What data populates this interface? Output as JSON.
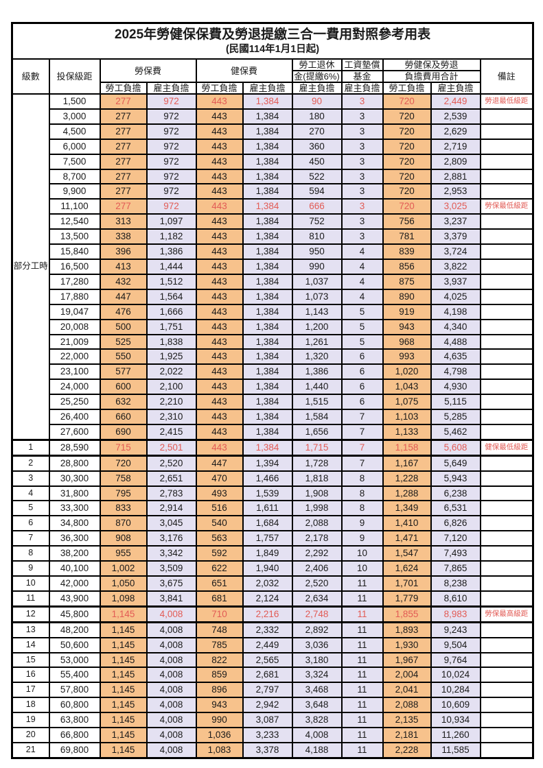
{
  "page": {
    "title": "2025年勞健保保費及勞退提繳三合一費用對照參考用表",
    "subtitle": "(民國114年1月1日起)"
  },
  "colors": {
    "employee_burden_bg": "#f7c28c",
    "employer_burden_bg": "#e4e1f2",
    "highlight_text": "#e25b55",
    "border": "#000000"
  },
  "header": {
    "level": "級數",
    "salary_bracket": "投保級距",
    "labor_insurance": "勞保費",
    "health_insurance": "健保費",
    "pension_line1": "勞工退休",
    "pension_line2": "金(提繳6%)",
    "wage_fund_line1": "工資墊償",
    "wage_fund_line2": "基金",
    "total_line1": "勞健保及勞退",
    "total_line2": "負擔費用合計",
    "note": "備註",
    "employee_burden": "勞工負擔",
    "employer_burden": "雇主負擔"
  },
  "table": {
    "part_time_label": "部分工時",
    "rows": [
      {
        "level": "部分工時",
        "level_rowspan": 23,
        "salary": "1,500",
        "cells": [
          "277",
          "972",
          "443",
          "1,384",
          "90",
          "3",
          "720",
          "2,449"
        ],
        "note": "勞退最低級距",
        "highlight": true
      },
      {
        "salary": "3,000",
        "cells": [
          "277",
          "972",
          "443",
          "1,384",
          "180",
          "3",
          "720",
          "2,539"
        ],
        "note": ""
      },
      {
        "salary": "4,500",
        "cells": [
          "277",
          "972",
          "443",
          "1,384",
          "270",
          "3",
          "720",
          "2,629"
        ],
        "note": ""
      },
      {
        "salary": "6,000",
        "cells": [
          "277",
          "972",
          "443",
          "1,384",
          "360",
          "3",
          "720",
          "2,719"
        ],
        "note": ""
      },
      {
        "salary": "7,500",
        "cells": [
          "277",
          "972",
          "443",
          "1,384",
          "450",
          "3",
          "720",
          "2,809"
        ],
        "note": ""
      },
      {
        "salary": "8,700",
        "cells": [
          "277",
          "972",
          "443",
          "1,384",
          "522",
          "3",
          "720",
          "2,881"
        ],
        "note": ""
      },
      {
        "salary": "9,900",
        "cells": [
          "277",
          "972",
          "443",
          "1,384",
          "594",
          "3",
          "720",
          "2,953"
        ],
        "note": ""
      },
      {
        "salary": "11,100",
        "cells": [
          "277",
          "972",
          "443",
          "1,384",
          "666",
          "3",
          "720",
          "3,025"
        ],
        "note": "勞保最低級距",
        "highlight": true
      },
      {
        "salary": "12,540",
        "cells": [
          "313",
          "1,097",
          "443",
          "1,384",
          "752",
          "3",
          "756",
          "3,237"
        ],
        "note": ""
      },
      {
        "salary": "13,500",
        "cells": [
          "338",
          "1,182",
          "443",
          "1,384",
          "810",
          "3",
          "781",
          "3,379"
        ],
        "note": ""
      },
      {
        "salary": "15,840",
        "cells": [
          "396",
          "1,386",
          "443",
          "1,384",
          "950",
          "4",
          "839",
          "3,724"
        ],
        "note": ""
      },
      {
        "salary": "16,500",
        "cells": [
          "413",
          "1,444",
          "443",
          "1,384",
          "990",
          "4",
          "856",
          "3,822"
        ],
        "note": ""
      },
      {
        "salary": "17,280",
        "cells": [
          "432",
          "1,512",
          "443",
          "1,384",
          "1,037",
          "4",
          "875",
          "3,937"
        ],
        "note": ""
      },
      {
        "salary": "17,880",
        "cells": [
          "447",
          "1,564",
          "443",
          "1,384",
          "1,073",
          "4",
          "890",
          "4,025"
        ],
        "note": ""
      },
      {
        "salary": "19,047",
        "cells": [
          "476",
          "1,666",
          "443",
          "1,384",
          "1,143",
          "5",
          "919",
          "4,198"
        ],
        "note": ""
      },
      {
        "salary": "20,008",
        "cells": [
          "500",
          "1,751",
          "443",
          "1,384",
          "1,200",
          "5",
          "943",
          "4,340"
        ],
        "note": ""
      },
      {
        "salary": "21,009",
        "cells": [
          "525",
          "1,838",
          "443",
          "1,384",
          "1,261",
          "5",
          "968",
          "4,488"
        ],
        "note": ""
      },
      {
        "salary": "22,000",
        "cells": [
          "550",
          "1,925",
          "443",
          "1,384",
          "1,320",
          "6",
          "993",
          "4,635"
        ],
        "note": ""
      },
      {
        "salary": "23,100",
        "cells": [
          "577",
          "2,022",
          "443",
          "1,384",
          "1,386",
          "6",
          "1,020",
          "4,798"
        ],
        "note": ""
      },
      {
        "salary": "24,000",
        "cells": [
          "600",
          "2,100",
          "443",
          "1,384",
          "1,440",
          "6",
          "1,043",
          "4,930"
        ],
        "note": ""
      },
      {
        "salary": "25,250",
        "cells": [
          "632",
          "2,210",
          "443",
          "1,384",
          "1,515",
          "6",
          "1,075",
          "5,115"
        ],
        "note": ""
      },
      {
        "salary": "26,400",
        "cells": [
          "660",
          "2,310",
          "443",
          "1,384",
          "1,584",
          "7",
          "1,103",
          "5,285"
        ],
        "note": ""
      },
      {
        "salary": "27,600",
        "cells": [
          "690",
          "2,415",
          "443",
          "1,384",
          "1,656",
          "7",
          "1,133",
          "5,462"
        ],
        "note": ""
      },
      {
        "level": "1",
        "salary": "28,590",
        "cells": [
          "715",
          "2,501",
          "443",
          "1,384",
          "1,715",
          "7",
          "1,158",
          "5,608"
        ],
        "note": "健保最低級距",
        "highlight": true,
        "thick": true
      },
      {
        "level": "2",
        "salary": "28,800",
        "cells": [
          "720",
          "2,520",
          "447",
          "1,394",
          "1,728",
          "7",
          "1,167",
          "5,649"
        ],
        "note": ""
      },
      {
        "level": "3",
        "salary": "30,300",
        "cells": [
          "758",
          "2,651",
          "470",
          "1,466",
          "1,818",
          "8",
          "1,228",
          "5,943"
        ],
        "note": ""
      },
      {
        "level": "4",
        "salary": "31,800",
        "cells": [
          "795",
          "2,783",
          "493",
          "1,539",
          "1,908",
          "8",
          "1,288",
          "6,238"
        ],
        "note": ""
      },
      {
        "level": "5",
        "salary": "33,300",
        "cells": [
          "833",
          "2,914",
          "516",
          "1,611",
          "1,998",
          "8",
          "1,349",
          "6,531"
        ],
        "note": ""
      },
      {
        "level": "6",
        "salary": "34,800",
        "cells": [
          "870",
          "3,045",
          "540",
          "1,684",
          "2,088",
          "9",
          "1,410",
          "6,826"
        ],
        "note": ""
      },
      {
        "level": "7",
        "salary": "36,300",
        "cells": [
          "908",
          "3,176",
          "563",
          "1,757",
          "2,178",
          "9",
          "1,471",
          "7,120"
        ],
        "note": ""
      },
      {
        "level": "8",
        "salary": "38,200",
        "cells": [
          "955",
          "3,342",
          "592",
          "1,849",
          "2,292",
          "10",
          "1,547",
          "7,493"
        ],
        "note": ""
      },
      {
        "level": "9",
        "salary": "40,100",
        "cells": [
          "1,002",
          "3,509",
          "622",
          "1,940",
          "2,406",
          "10",
          "1,624",
          "7,865"
        ],
        "note": ""
      },
      {
        "level": "10",
        "salary": "42,000",
        "cells": [
          "1,050",
          "3,675",
          "651",
          "2,032",
          "2,520",
          "11",
          "1,701",
          "8,238"
        ],
        "note": ""
      },
      {
        "level": "11",
        "salary": "43,900",
        "cells": [
          "1,098",
          "3,841",
          "681",
          "2,124",
          "2,634",
          "11",
          "1,779",
          "8,610"
        ],
        "note": ""
      },
      {
        "level": "12",
        "salary": "45,800",
        "cells": [
          "1,145",
          "4,008",
          "710",
          "2,216",
          "2,748",
          "11",
          "1,855",
          "8,983"
        ],
        "note": "勞保最高級距",
        "highlight": true,
        "thick": true
      },
      {
        "level": "13",
        "salary": "48,200",
        "cells": [
          "1,145",
          "4,008",
          "748",
          "2,332",
          "2,892",
          "11",
          "1,893",
          "9,243"
        ],
        "note": ""
      },
      {
        "level": "14",
        "salary": "50,600",
        "cells": [
          "1,145",
          "4,008",
          "785",
          "2,449",
          "3,036",
          "11",
          "1,930",
          "9,504"
        ],
        "note": ""
      },
      {
        "level": "15",
        "salary": "53,000",
        "cells": [
          "1,145",
          "4,008",
          "822",
          "2,565",
          "3,180",
          "11",
          "1,967",
          "9,764"
        ],
        "note": ""
      },
      {
        "level": "16",
        "salary": "55,400",
        "cells": [
          "1,145",
          "4,008",
          "859",
          "2,681",
          "3,324",
          "11",
          "2,004",
          "10,024"
        ],
        "note": ""
      },
      {
        "level": "17",
        "salary": "57,800",
        "cells": [
          "1,145",
          "4,008",
          "896",
          "2,797",
          "3,468",
          "11",
          "2,041",
          "10,284"
        ],
        "note": ""
      },
      {
        "level": "18",
        "salary": "60,800",
        "cells": [
          "1,145",
          "4,008",
          "943",
          "2,942",
          "3,648",
          "11",
          "2,088",
          "10,609"
        ],
        "note": ""
      },
      {
        "level": "19",
        "salary": "63,800",
        "cells": [
          "1,145",
          "4,008",
          "990",
          "3,087",
          "3,828",
          "11",
          "2,135",
          "10,934"
        ],
        "note": ""
      },
      {
        "level": "20",
        "salary": "66,800",
        "cells": [
          "1,145",
          "4,008",
          "1,036",
          "3,233",
          "4,008",
          "11",
          "2,181",
          "11,260"
        ],
        "note": ""
      },
      {
        "level": "21",
        "salary": "69,800",
        "cells": [
          "1,145",
          "4,008",
          "1,083",
          "3,378",
          "4,188",
          "11",
          "2,228",
          "11,585"
        ],
        "note": ""
      }
    ]
  }
}
